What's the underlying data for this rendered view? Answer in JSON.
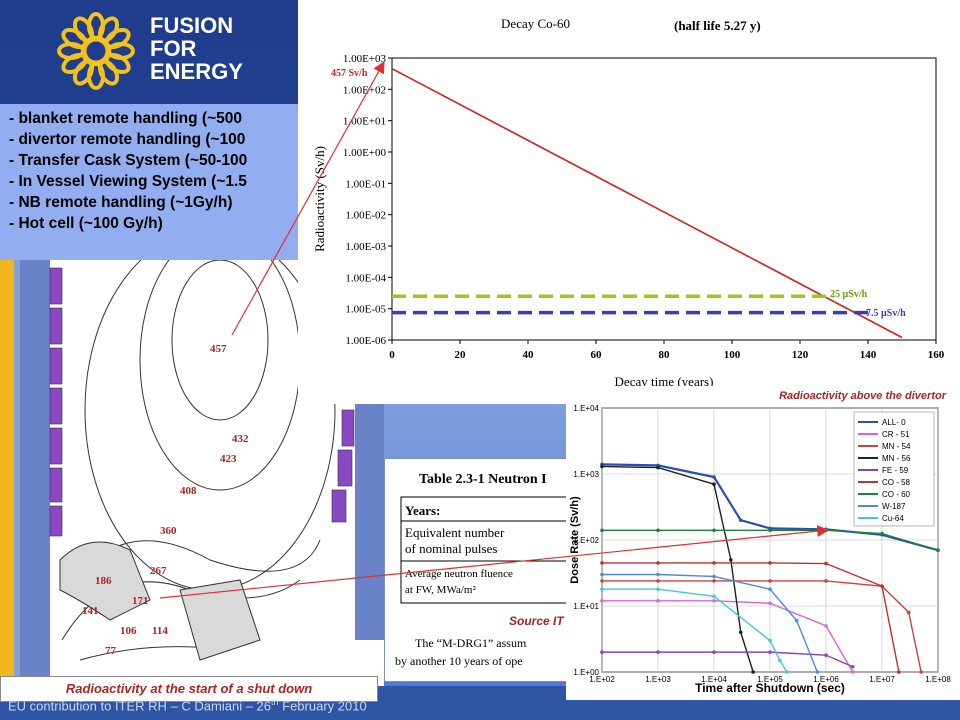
{
  "header": {
    "logo_line1": "FUSION",
    "logo_line2": "FOR",
    "logo_line3": "ENERGY"
  },
  "rh_list": [
    "- blanket remote handling (~500",
    "- divertor remote handling (~100",
    "- Transfer Cask System (~50-100",
    "- In Vessel Viewing System (~1.5",
    "- NB remote handling (~1Gy/h)",
    "- Hot cell (~100 Gy/h)"
  ],
  "tokamak": {
    "contour_labels": [
      "457",
      "432",
      "423",
      "408",
      "360",
      "267",
      "186",
      "171",
      "141",
      "106",
      "114",
      "77"
    ]
  },
  "table_snippet": {
    "title": "Table 2.3-1 Neutron I",
    "row_years": "Years:",
    "row_pulses_1": "Equivalent number",
    "row_pulses_2": "of nominal pulses",
    "row_fluence_1": "Average neutron fluence",
    "row_fluence_2": "at FW, MWa/m²",
    "source_label": "Source IT",
    "note_1": "The “M-DRG1” assum",
    "note_2": "by another 10 years of ope"
  },
  "captions": {
    "shutdown": "Radioactivity at the start of a shut down",
    "divertor": "Radioactivity above the divertor"
  },
  "footer": {
    "text_pre": "EU contribution to ITER RH – C Damiani – 26",
    "text_sup": "th",
    "text_post": " February 2010"
  },
  "colors": {
    "decay_line": "#d42020",
    "ref_green": "#9dc817",
    "ref_blue": "#3c3cb4",
    "arrow": "#e03030"
  },
  "chart_data": [
    {
      "type": "line",
      "title_left": "Decay Co-60",
      "title_right": "(half life 5.27 y)",
      "xlabel": "Decay time (years)",
      "ylabel": "Radioactivity (Sv/h)",
      "xlim": [
        0,
        160
      ],
      "x_ticks": [
        "0",
        "20",
        "40",
        "60",
        "80",
        "100",
        "120",
        "140",
        "160"
      ],
      "y_scale": "log",
      "ylim": [
        1e-06,
        1000.0
      ],
      "y_ticks": [
        "1.00E-06",
        "1.00E-05",
        "1.00E-04",
        "1.00E-03",
        "1.00E-02",
        "1.00E-01",
        "1.00E+00",
        "1.00E+01",
        "1.00E+02",
        "1.00E+03"
      ],
      "series": [
        {
          "x": [
            0,
            150
          ],
          "y": [
            457,
            1.2e-06
          ],
          "style": "solid"
        },
        {
          "x": [
            0,
            130
          ],
          "y": [
            2.5e-05,
            2.5e-05
          ],
          "style": "dashed",
          "label": "25 µSv/h"
        },
        {
          "x": [
            0,
            140
          ],
          "y": [
            7.5e-06,
            7.5e-06
          ],
          "style": "dashed",
          "label": "7.5 µSv/h"
        }
      ],
      "annotations": [
        "457 Sv/h"
      ]
    },
    {
      "type": "line",
      "xlabel": "Time after Shutdown (sec)",
      "ylabel": "Dose Rate (Sv/h)",
      "x_scale": "log",
      "xlim": [
        100,
        100000000
      ],
      "x_ticks": [
        "1.E+02",
        "1.E+03",
        "1.E+04",
        "1.E+05",
        "1.E+06",
        "1.E+07",
        "1.E+08"
      ],
      "y_scale": "log",
      "ylim": [
        1,
        10000
      ],
      "y_ticks": [
        "1.E+00",
        "1.E+01",
        "1.E+02",
        "1.E+03",
        "1.E+04"
      ],
      "legend_position": "top-right",
      "series": [
        {
          "name": "ALL- 0",
          "color": "#2a4fb0",
          "x": [
            100,
            1000,
            10000,
            30000,
            100000,
            1000000,
            10000000,
            100000000
          ],
          "y": [
            1400,
            1350,
            900,
            200,
            150,
            145,
            120,
            70
          ]
        },
        {
          "name": "CR - 51",
          "color": "#e060e0",
          "x": [
            100,
            1000,
            10000,
            100000,
            1000000,
            3000000
          ],
          "y": [
            12,
            12,
            12,
            11,
            5,
            1
          ]
        },
        {
          "name": "MN - 54",
          "color": "#d04040",
          "x": [
            100,
            1000,
            10000,
            100000,
            1000000,
            10000000,
            30000000,
            50000000
          ],
          "y": [
            24,
            24,
            24,
            24,
            24,
            20,
            8,
            1
          ]
        },
        {
          "name": "MN - 56",
          "color": "#202020",
          "x": [
            100,
            1000,
            10000,
            20000,
            30000,
            50000
          ],
          "y": [
            1300,
            1250,
            700,
            50,
            4,
            1
          ]
        },
        {
          "name": "FE - 59",
          "color": "#9040b0",
          "x": [
            100,
            1000,
            10000,
            100000,
            1000000,
            3000000
          ],
          "y": [
            2,
            2,
            2,
            2,
            1.8,
            1.2
          ]
        },
        {
          "name": "CO - 58",
          "color": "#c03030",
          "x": [
            100,
            1000,
            10000,
            100000,
            1000000,
            10000000,
            20000000
          ],
          "y": [
            45,
            45,
            45,
            45,
            44,
            20,
            1
          ]
        },
        {
          "name": "CO - 60",
          "color": "#208040",
          "x": [
            100,
            1000,
            10000,
            100000,
            1000000,
            10000000,
            100000000
          ],
          "y": [
            140,
            140,
            140,
            140,
            140,
            125,
            70
          ]
        },
        {
          "name": "W-187",
          "color": "#4a8ae0",
          "x": [
            100,
            1000,
            10000,
            100000,
            300000,
            700000
          ],
          "y": [
            30,
            30,
            28,
            18,
            6,
            1
          ]
        },
        {
          "name": "Cu-64",
          "color": "#40c8e0",
          "x": [
            100,
            1000,
            10000,
            100000,
            150000,
            200000
          ],
          "y": [
            18,
            18,
            14,
            3,
            1.5,
            1
          ]
        }
      ]
    }
  ]
}
